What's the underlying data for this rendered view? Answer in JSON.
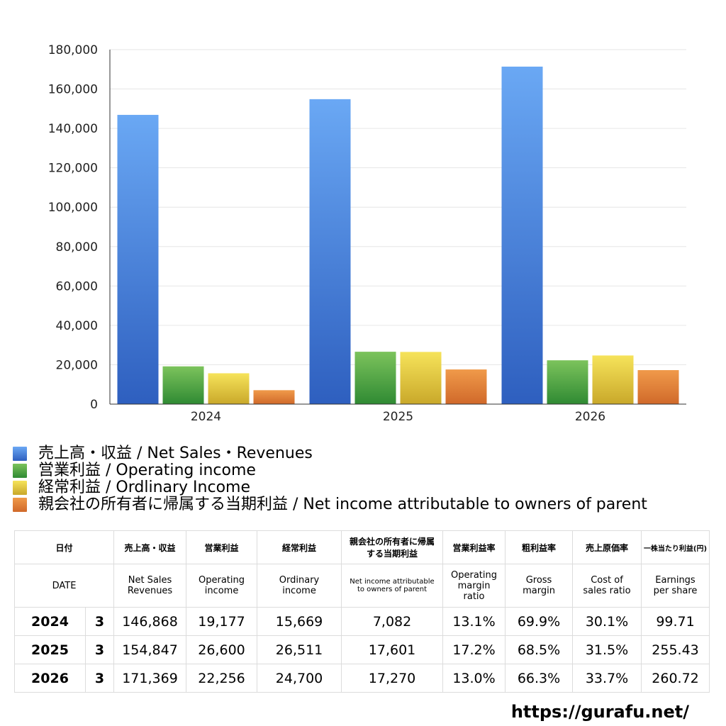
{
  "chart_data": {
    "type": "bar",
    "categories": [
      "2024",
      "2025",
      "2026"
    ],
    "series": [
      {
        "name": "売上高・収益 / Net Sales・Revenues",
        "color": "#3d7fe0",
        "values": [
          146868,
          154847,
          171369
        ]
      },
      {
        "name": "営業利益 / Operating income",
        "color": "#4aa23e",
        "values": [
          19177,
          26600,
          22256
        ]
      },
      {
        "name": "経常利益 / Ordlinary Income",
        "color": "#e4c838",
        "values": [
          15669,
          26511,
          24700
        ]
      },
      {
        "name": "親会社の所有者に帰属する当期利益 / Net income attributable to owners of parent",
        "color": "#e07b2e",
        "values": [
          7082,
          17601,
          17270
        ]
      }
    ],
    "ylim": [
      0,
      180000
    ],
    "yticks": [
      "0",
      "20,000",
      "40,000",
      "60,000",
      "80,000",
      "100,000",
      "120,000",
      "140,000",
      "160,000",
      "180,000"
    ],
    "grid": true,
    "legend_position": "bottom-left",
    "title": "",
    "xlabel": "",
    "ylabel": ""
  },
  "table": {
    "header_jp": [
      "日付",
      "売上高・収益",
      "営業利益",
      "経常利益",
      "親会社の所有者に帰属する当期利益",
      "営業利益率",
      "粗利益率",
      "売上原価率",
      "一株当たり利益(円)"
    ],
    "header_en": [
      "DATE",
      "Net Sales Revenues",
      "Operating income",
      "Ordinary income",
      "Net income attributable to owners of parent",
      "Operating margin ratio",
      "Gross margin",
      "Cost of sales ratio",
      "Earnings per share"
    ],
    "rows": [
      {
        "year": "2024",
        "month": "3",
        "cells": [
          "146,868",
          "19,177",
          "15,669",
          "7,082",
          "13.1%",
          "69.9%",
          "30.1%",
          "99.71"
        ]
      },
      {
        "year": "2025",
        "month": "3",
        "cells": [
          "154,847",
          "26,600",
          "26,511",
          "17,601",
          "17.2%",
          "68.5%",
          "31.5%",
          "255.43"
        ]
      },
      {
        "year": "2026",
        "month": "3",
        "cells": [
          "171,369",
          "22,256",
          "24,700",
          "17,270",
          "13.0%",
          "66.3%",
          "33.7%",
          "260.72"
        ]
      }
    ]
  },
  "footer": {
    "url": "https://gurafu.net/"
  }
}
